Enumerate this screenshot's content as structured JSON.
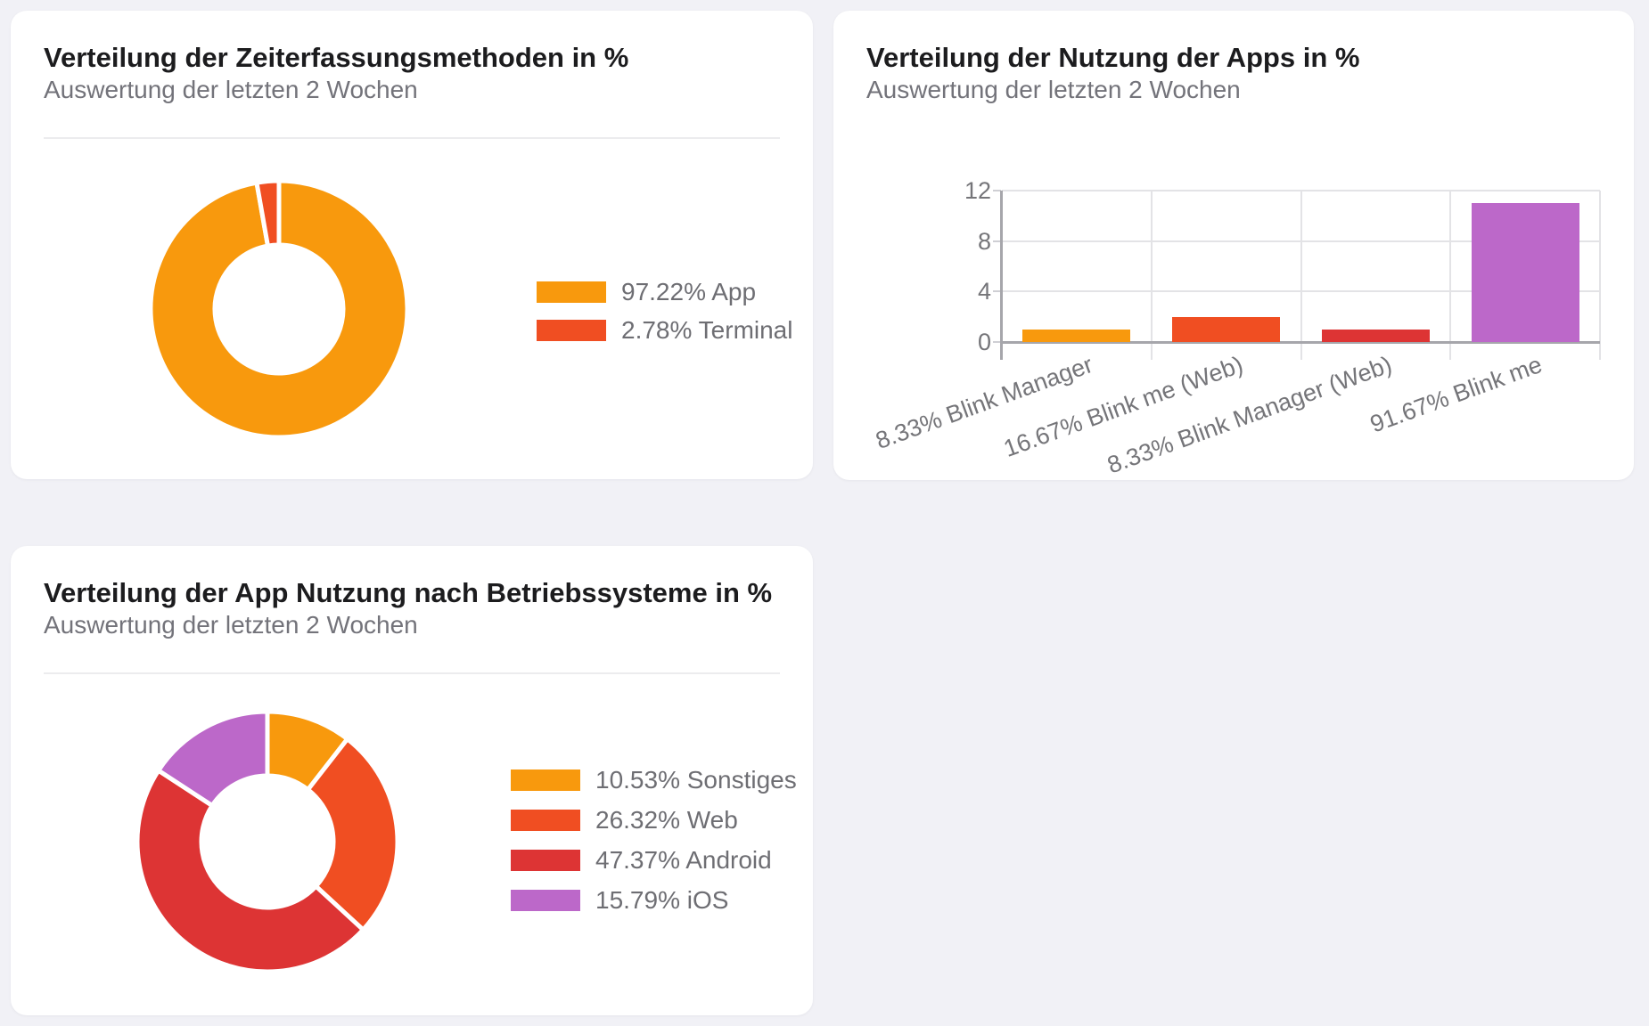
{
  "page_background": "#F1F1F6",
  "chart_data": [
    {
      "id": "methods",
      "type": "pie",
      "style": "donut",
      "title": "Verteilung der Zeiterfassungsmethoden in %",
      "subtitle": "Auswertung der letzten 2 Wochen",
      "labels": [
        "App",
        "Terminal"
      ],
      "values": [
        97.22,
        2.78
      ],
      "unit": "%",
      "colors": [
        "#F8990D",
        "#F04E22"
      ],
      "legend_entries": [
        "97.22% App",
        "2.78% Terminal"
      ],
      "legend_position": "right",
      "start_angle": "top",
      "direction": "clockwise"
    },
    {
      "id": "apps",
      "type": "bar",
      "title": "Verteilung der Nutzung der Apps in %",
      "subtitle": "Auswertung der letzten 2 Wochen",
      "categories": [
        "8.33% Blink Manager",
        "16.67% Blink me (Web)",
        "8.33% Blink Manager (Web)",
        "91.67% Blink me"
      ],
      "values": [
        1,
        2,
        1,
        11
      ],
      "percentages": [
        8.33,
        16.67,
        8.33,
        91.67
      ],
      "colors": [
        "#F8990D",
        "#F04E22",
        "#DD3434",
        "#BC68C9"
      ],
      "ylim": [
        0,
        12
      ],
      "yticks": [
        12,
        8,
        4,
        0
      ],
      "grid": true,
      "xlabel_rotation_deg": -20
    },
    {
      "id": "os",
      "type": "pie",
      "style": "donut",
      "title": "Verteilung der App Nutzung nach Betriebssysteme in %",
      "subtitle": "Auswertung der letzten 2 Wochen",
      "labels": [
        "Sonstiges",
        "Web",
        "Android",
        "iOS"
      ],
      "values": [
        10.53,
        26.32,
        47.37,
        15.79
      ],
      "unit": "%",
      "colors": [
        "#F8990D",
        "#F04E22",
        "#DD3434",
        "#BC68C9"
      ],
      "legend_entries": [
        "10.53% Sonstiges",
        "26.32% Web",
        "47.37% Android",
        "15.79% iOS"
      ],
      "legend_position": "right",
      "start_angle": "top",
      "direction": "clockwise"
    }
  ]
}
